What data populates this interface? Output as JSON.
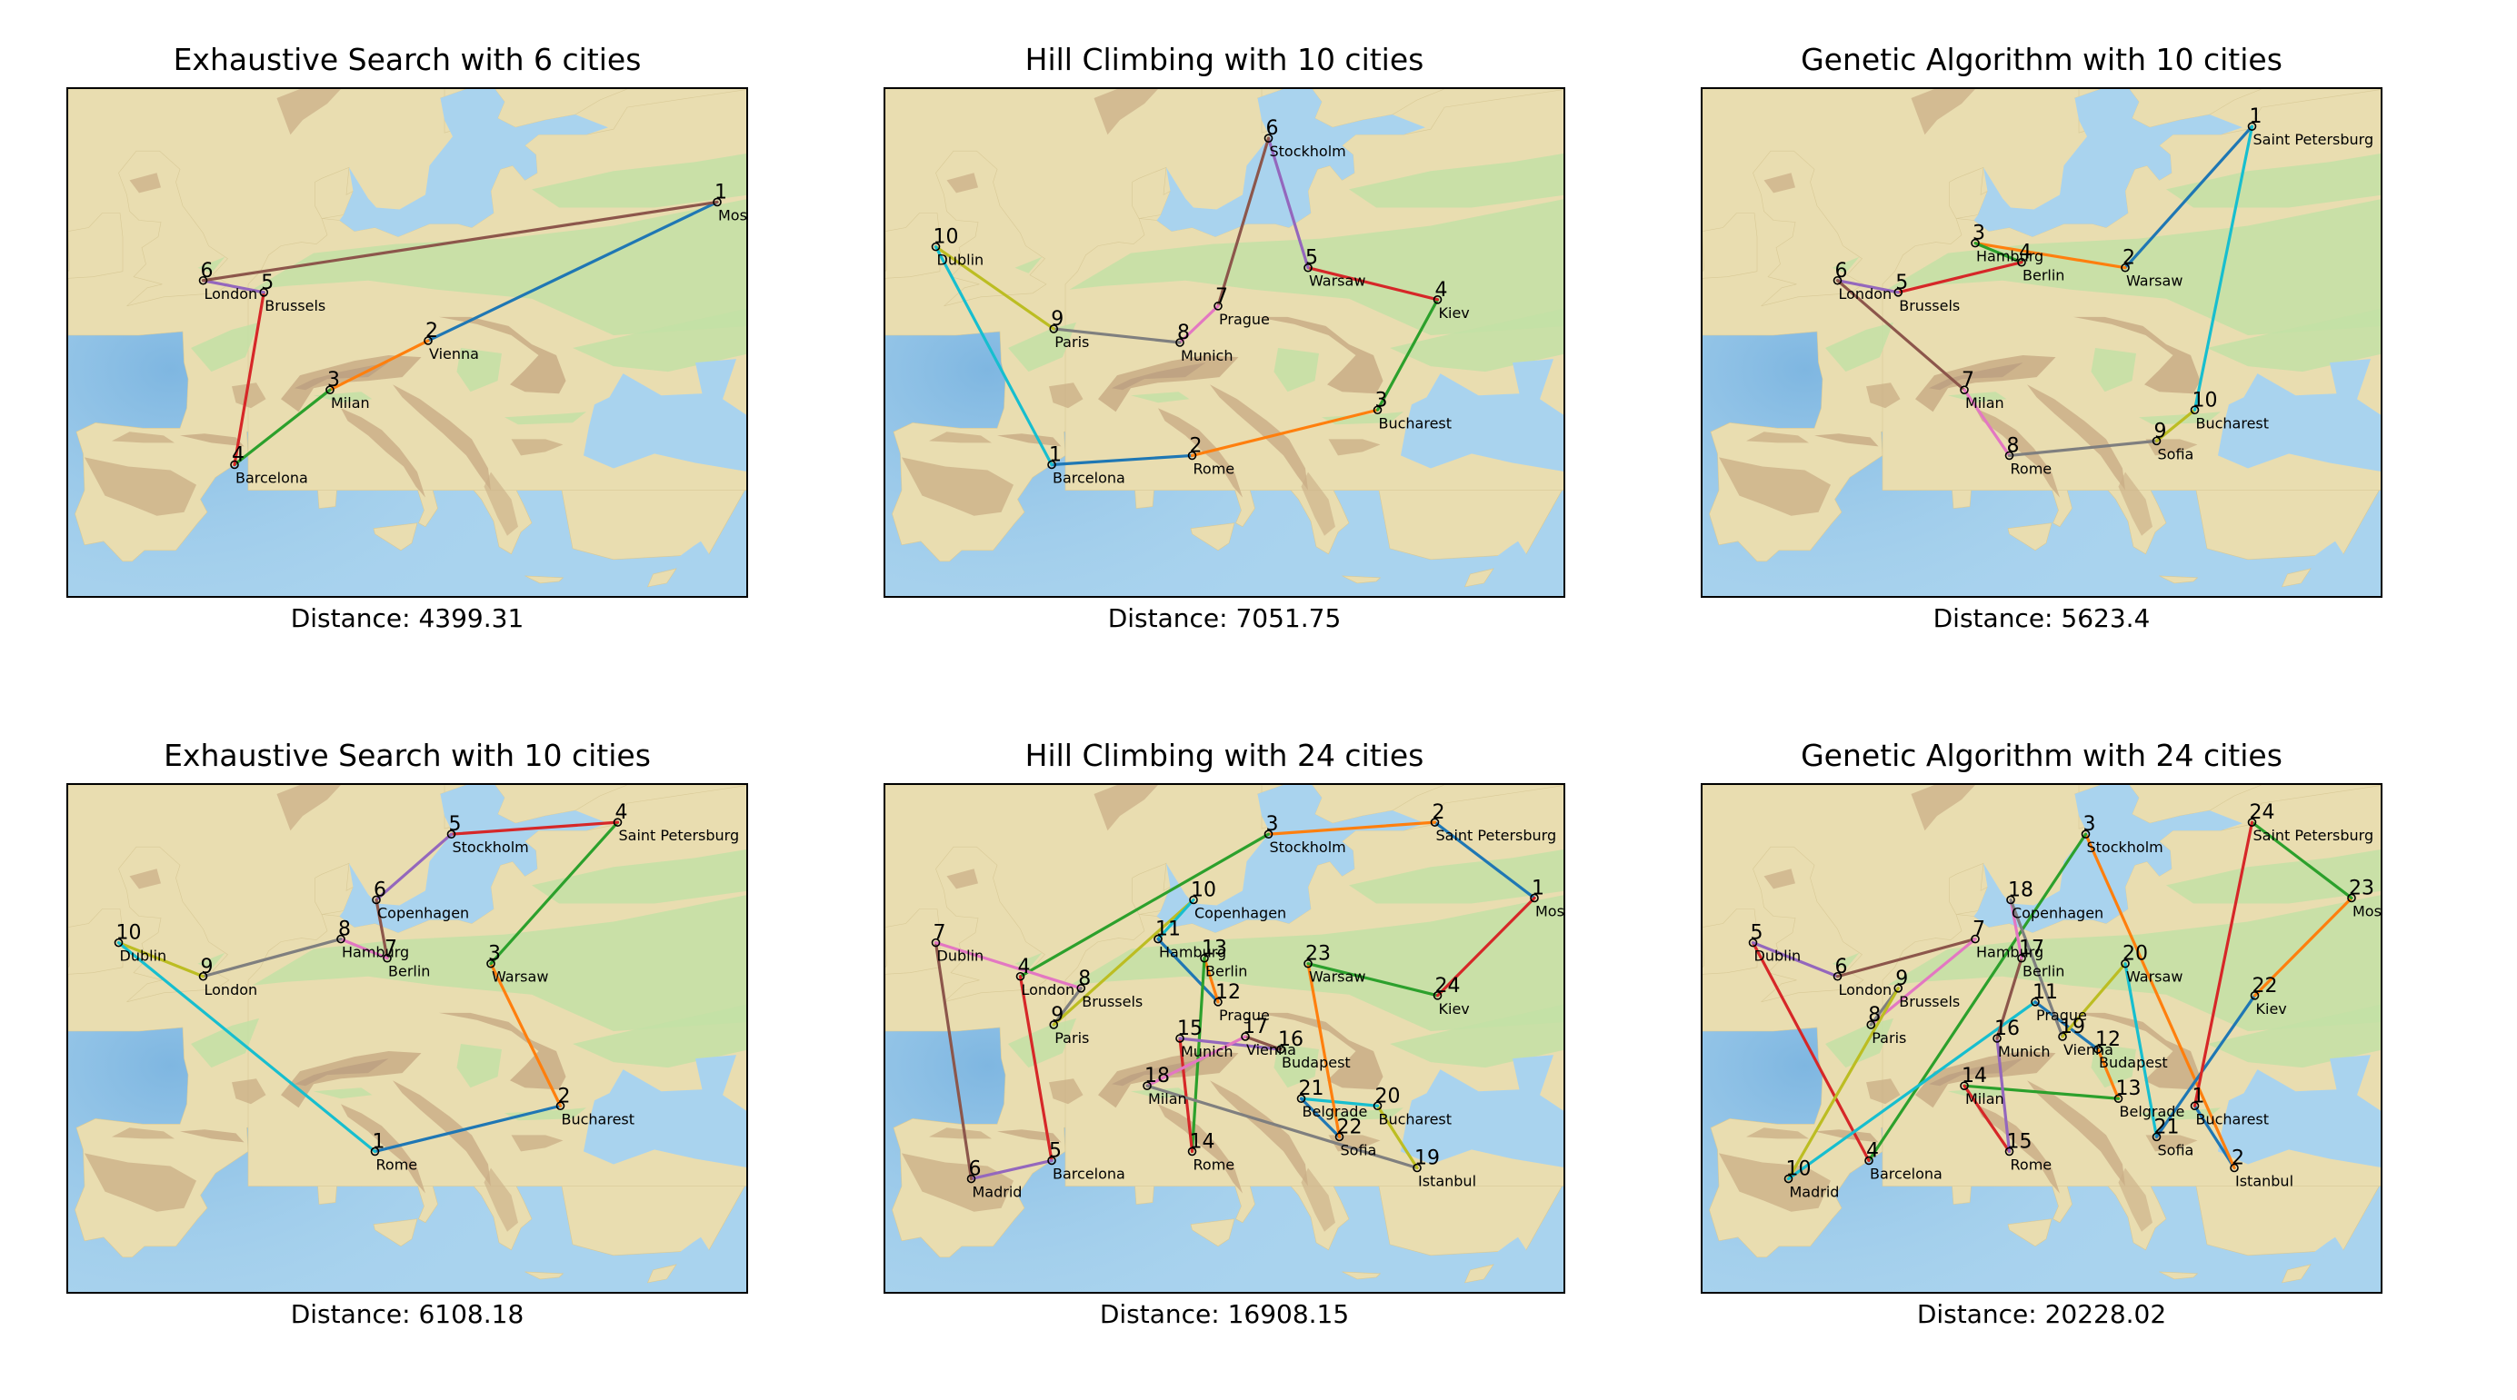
{
  "chart_data": [
    {
      "type": "scatter",
      "title": "Exhaustive Search with 6 cities",
      "distance_label": "Distance: 4399.31",
      "route": [
        {
          "order": "1",
          "city": "Moscow",
          "lon": 37.6,
          "lat": 55.8
        },
        {
          "order": "2",
          "city": "Vienna",
          "lon": 16.4,
          "lat": 48.2
        },
        {
          "order": "3",
          "city": "Milan",
          "lon": 9.2,
          "lat": 45.5
        },
        {
          "order": "4",
          "city": "Barcelona",
          "lon": 2.2,
          "lat": 41.4
        },
        {
          "order": "5",
          "city": "Brussels",
          "lon": 4.35,
          "lat": 50.85
        },
        {
          "order": "6",
          "city": "London",
          "lon": -0.1,
          "lat": 51.5
        }
      ]
    },
    {
      "type": "scatter",
      "title": "Hill Climbing with 10 cities",
      "distance_label": "Distance: 7051.75",
      "route": [
        {
          "order": "1",
          "city": "Barcelona",
          "lon": 2.2,
          "lat": 41.4
        },
        {
          "order": "2",
          "city": "Rome",
          "lon": 12.5,
          "lat": 41.9
        },
        {
          "order": "3",
          "city": "Bucharest",
          "lon": 26.1,
          "lat": 44.4
        },
        {
          "order": "4",
          "city": "Kiev",
          "lon": 30.5,
          "lat": 50.45
        },
        {
          "order": "5",
          "city": "Warsaw",
          "lon": 21.0,
          "lat": 52.2
        },
        {
          "order": "6",
          "city": "Stockholm",
          "lon": 18.1,
          "lat": 59.3
        },
        {
          "order": "7",
          "city": "Prague",
          "lon": 14.4,
          "lat": 50.1
        },
        {
          "order": "8",
          "city": "Munich",
          "lon": 11.6,
          "lat": 48.1
        },
        {
          "order": "9",
          "city": "Paris",
          "lon": 2.35,
          "lat": 48.85
        },
        {
          "order": "10",
          "city": "Dublin",
          "lon": -6.3,
          "lat": 53.35
        }
      ]
    },
    {
      "type": "scatter",
      "title": "Genetic Algorithm with 10 cities",
      "distance_label": "Distance: 5623.4",
      "route": [
        {
          "order": "1",
          "city": "Saint Petersburg",
          "lon": 30.3,
          "lat": 59.95
        },
        {
          "order": "2",
          "city": "Warsaw",
          "lon": 21.0,
          "lat": 52.2
        },
        {
          "order": "3",
          "city": "Hamburg",
          "lon": 10.0,
          "lat": 53.55
        },
        {
          "order": "4",
          "city": "Berlin",
          "lon": 13.4,
          "lat": 52.5
        },
        {
          "order": "5",
          "city": "Brussels",
          "lon": 4.35,
          "lat": 50.85
        },
        {
          "order": "6",
          "city": "London",
          "lon": -0.1,
          "lat": 51.5
        },
        {
          "order": "7",
          "city": "Milan",
          "lon": 9.2,
          "lat": 45.5
        },
        {
          "order": "8",
          "city": "Rome",
          "lon": 12.5,
          "lat": 41.9
        },
        {
          "order": "9",
          "city": "Sofia",
          "lon": 23.3,
          "lat": 42.7
        },
        {
          "order": "10",
          "city": "Bucharest",
          "lon": 26.1,
          "lat": 44.4
        }
      ]
    },
    {
      "type": "scatter",
      "title": "Exhaustive Search with 10 cities",
      "distance_label": "Distance: 6108.18",
      "route": [
        {
          "order": "1",
          "city": "Rome",
          "lon": 12.5,
          "lat": 41.9
        },
        {
          "order": "2",
          "city": "Bucharest",
          "lon": 26.1,
          "lat": 44.4
        },
        {
          "order": "3",
          "city": "Warsaw",
          "lon": 21.0,
          "lat": 52.2
        },
        {
          "order": "4",
          "city": "Saint Petersburg",
          "lon": 30.3,
          "lat": 59.95
        },
        {
          "order": "5",
          "city": "Stockholm",
          "lon": 18.1,
          "lat": 59.3
        },
        {
          "order": "6",
          "city": "Copenhagen",
          "lon": 12.6,
          "lat": 55.7
        },
        {
          "order": "7",
          "city": "Berlin",
          "lon": 13.4,
          "lat": 52.5
        },
        {
          "order": "8",
          "city": "Hamburg",
          "lon": 10.0,
          "lat": 53.55
        },
        {
          "order": "9",
          "city": "London",
          "lon": -0.1,
          "lat": 51.5
        },
        {
          "order": "10",
          "city": "Dublin",
          "lon": -6.3,
          "lat": 53.35
        }
      ]
    },
    {
      "type": "scatter",
      "title": "Hill Climbing with 24 cities",
      "distance_label": "Distance: 16908.15",
      "route": [
        {
          "order": "1",
          "city": "Moscow",
          "lon": 37.6,
          "lat": 55.8
        },
        {
          "order": "2",
          "city": "Saint Petersburg",
          "lon": 30.3,
          "lat": 59.95
        },
        {
          "order": "3",
          "city": "Stockholm",
          "lon": 18.1,
          "lat": 59.3
        },
        {
          "order": "4",
          "city": "London",
          "lon": -0.1,
          "lat": 51.5
        },
        {
          "order": "5",
          "city": "Barcelona",
          "lon": 2.2,
          "lat": 41.4
        },
        {
          "order": "6",
          "city": "Madrid",
          "lon": -3.7,
          "lat": 40.4
        },
        {
          "order": "7",
          "city": "Dublin",
          "lon": -6.3,
          "lat": 53.35
        },
        {
          "order": "8",
          "city": "Brussels",
          "lon": 4.35,
          "lat": 50.85
        },
        {
          "order": "9",
          "city": "Paris",
          "lon": 2.35,
          "lat": 48.85
        },
        {
          "order": "10",
          "city": "Copenhagen",
          "lon": 12.6,
          "lat": 55.7
        },
        {
          "order": "11",
          "city": "Hamburg",
          "lon": 10.0,
          "lat": 53.55
        },
        {
          "order": "12",
          "city": "Prague",
          "lon": 14.4,
          "lat": 50.1
        },
        {
          "order": "13",
          "city": "Berlin",
          "lon": 13.4,
          "lat": 52.5
        },
        {
          "order": "14",
          "city": "Rome",
          "lon": 12.5,
          "lat": 41.9
        },
        {
          "order": "15",
          "city": "Munich",
          "lon": 11.6,
          "lat": 48.1
        },
        {
          "order": "16",
          "city": "Budapest",
          "lon": 19.0,
          "lat": 47.5
        },
        {
          "order": "17",
          "city": "Vienna",
          "lon": 16.4,
          "lat": 48.2
        },
        {
          "order": "18",
          "city": "Milan",
          "lon": 9.2,
          "lat": 45.5
        },
        {
          "order": "19",
          "city": "Istanbul",
          "lon": 29.0,
          "lat": 41.0
        },
        {
          "order": "20",
          "city": "Bucharest",
          "lon": 26.1,
          "lat": 44.4
        },
        {
          "order": "21",
          "city": "Belgrade",
          "lon": 20.5,
          "lat": 44.8
        },
        {
          "order": "22",
          "city": "Sofia",
          "lon": 23.3,
          "lat": 42.7
        },
        {
          "order": "23",
          "city": "Warsaw",
          "lon": 21.0,
          "lat": 52.2
        },
        {
          "order": "24",
          "city": "Kiev",
          "lon": 30.5,
          "lat": 50.45
        }
      ]
    },
    {
      "type": "scatter",
      "title": "Genetic Algorithm with 24 cities",
      "distance_label": "Distance: 20228.02",
      "route": [
        {
          "order": "1",
          "city": "Bucharest",
          "lon": 26.1,
          "lat": 44.4
        },
        {
          "order": "2",
          "city": "Istanbul",
          "lon": 29.0,
          "lat": 41.0
        },
        {
          "order": "3",
          "city": "Stockholm",
          "lon": 18.1,
          "lat": 59.3
        },
        {
          "order": "4",
          "city": "Barcelona",
          "lon": 2.2,
          "lat": 41.4
        },
        {
          "order": "5",
          "city": "Dublin",
          "lon": -6.3,
          "lat": 53.35
        },
        {
          "order": "6",
          "city": "London",
          "lon": -0.1,
          "lat": 51.5
        },
        {
          "order": "7",
          "city": "Hamburg",
          "lon": 10.0,
          "lat": 53.55
        },
        {
          "order": "8",
          "city": "Paris",
          "lon": 2.35,
          "lat": 48.85
        },
        {
          "order": "9",
          "city": "Brussels",
          "lon": 4.35,
          "lat": 50.85
        },
        {
          "order": "10",
          "city": "Madrid",
          "lon": -3.7,
          "lat": 40.4
        },
        {
          "order": "11",
          "city": "Prague",
          "lon": 14.4,
          "lat": 50.1
        },
        {
          "order": "12",
          "city": "Budapest",
          "lon": 19.0,
          "lat": 47.5
        },
        {
          "order": "13",
          "city": "Belgrade",
          "lon": 20.5,
          "lat": 44.8
        },
        {
          "order": "14",
          "city": "Milan",
          "lon": 9.2,
          "lat": 45.5
        },
        {
          "order": "15",
          "city": "Rome",
          "lon": 12.5,
          "lat": 41.9
        },
        {
          "order": "16",
          "city": "Munich",
          "lon": 11.6,
          "lat": 48.1
        },
        {
          "order": "17",
          "city": "Berlin",
          "lon": 13.4,
          "lat": 52.5
        },
        {
          "order": "18",
          "city": "Copenhagen",
          "lon": 12.6,
          "lat": 55.7
        },
        {
          "order": "19",
          "city": "Vienna",
          "lon": 16.4,
          "lat": 48.2
        },
        {
          "order": "20",
          "city": "Warsaw",
          "lon": 21.0,
          "lat": 52.2
        },
        {
          "order": "21",
          "city": "Sofia",
          "lon": 23.3,
          "lat": 42.7
        },
        {
          "order": "22",
          "city": "Kiev",
          "lon": 30.5,
          "lat": 50.45
        },
        {
          "order": "23",
          "city": "Moscow",
          "lon": 37.6,
          "lat": 55.8
        },
        {
          "order": "24",
          "city": "Saint Petersburg",
          "lon": 30.3,
          "lat": 59.95
        }
      ]
    }
  ],
  "colors": {
    "segment_cycle": [
      "#1f77b4",
      "#ff7f0e",
      "#2ca02c",
      "#d62728",
      "#9467bd",
      "#8c564b",
      "#e377c2",
      "#7f7f7f",
      "#bcbd22",
      "#17becf"
    ],
    "sea": "#a9d3ee",
    "land": "#e9ddb0",
    "lowland": "#c3e0a6",
    "highland": "#c9ad86",
    "mountain": "#b79a7e"
  },
  "background_icon": "relief-map-of-europe"
}
